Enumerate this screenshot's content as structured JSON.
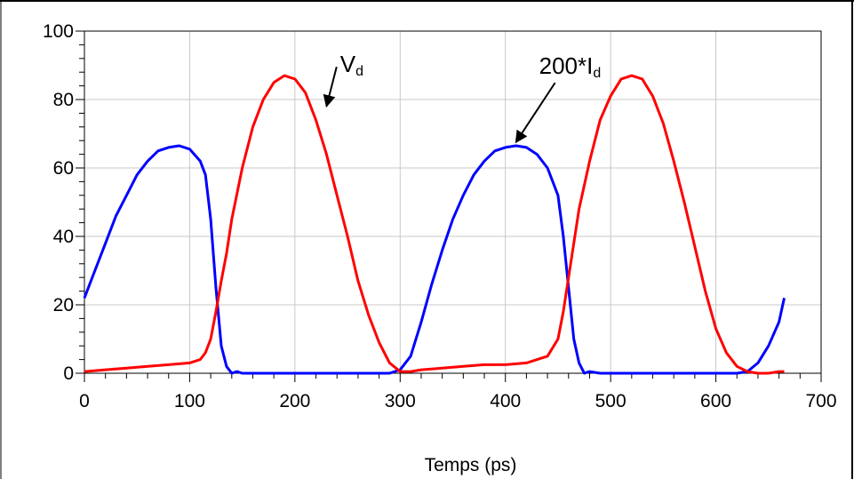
{
  "chart_data": {
    "type": "line",
    "title": "",
    "xlabel": "Temps (ps)",
    "ylabel": "",
    "xlim": [
      0,
      700
    ],
    "ylim": [
      0,
      100
    ],
    "grid": true,
    "x_ticks": [
      0,
      100,
      200,
      300,
      400,
      500,
      600,
      700
    ],
    "y_ticks": [
      0,
      20,
      40,
      60,
      80,
      100
    ],
    "x_tick_labels": [
      "0",
      "100",
      "200",
      "300",
      "400",
      "500",
      "600",
      "700"
    ],
    "y_tick_labels": [
      "0",
      "20",
      "40",
      "60",
      "80",
      "100"
    ],
    "series": [
      {
        "name": "",
        "color": "#0000ff",
        "x": [
          0,
          10,
          20,
          30,
          40,
          50,
          60,
          70,
          80,
          90,
          100,
          110,
          115,
          120,
          125,
          130,
          135,
          140,
          145,
          150,
          200,
          250,
          290,
          300,
          310,
          320,
          330,
          340,
          350,
          360,
          370,
          380,
          390,
          400,
          410,
          420,
          430,
          440,
          450,
          455,
          460,
          465,
          470,
          475,
          480,
          490,
          550,
          600,
          620,
          630,
          640,
          650,
          660,
          665
        ],
        "y": [
          22,
          30,
          38,
          46,
          52,
          58,
          62,
          65,
          66,
          66.5,
          65.5,
          62,
          58,
          45,
          25,
          8,
          2,
          0,
          0.5,
          0,
          0,
          0,
          0,
          1,
          5,
          15,
          26,
          36,
          45,
          52,
          58,
          62,
          65,
          66,
          66.5,
          66,
          64,
          60,
          52,
          40,
          25,
          10,
          3,
          0,
          0.5,
          0,
          0,
          0,
          0,
          0.5,
          3,
          8,
          15,
          22
        ]
      },
      {
        "name": "",
        "color": "#ff0000",
        "x": [
          0,
          20,
          40,
          60,
          80,
          100,
          110,
          115,
          120,
          125,
          130,
          135,
          140,
          150,
          160,
          170,
          180,
          190,
          200,
          210,
          220,
          230,
          240,
          250,
          260,
          270,
          280,
          290,
          300,
          310,
          320,
          340,
          360,
          380,
          400,
          420,
          440,
          450,
          455,
          460,
          465,
          470,
          480,
          490,
          500,
          510,
          520,
          530,
          540,
          550,
          560,
          570,
          580,
          590,
          600,
          610,
          620,
          630,
          640,
          650,
          660,
          665
        ],
        "y": [
          0.5,
          1,
          1.5,
          2,
          2.5,
          3,
          4,
          6,
          10,
          18,
          27,
          35,
          45,
          60,
          72,
          80,
          85,
          87,
          86,
          82,
          74,
          64,
          52,
          40,
          27,
          17,
          9,
          3,
          0.5,
          0.5,
          1,
          1.5,
          2,
          2.5,
          2.5,
          3,
          5,
          10,
          18,
          28,
          38,
          48,
          62,
          74,
          81,
          86,
          87,
          86,
          81,
          73,
          62,
          50,
          37,
          24,
          13,
          6,
          2,
          0.5,
          0,
          0,
          0.5,
          0.5
        ]
      }
    ],
    "annotations": [
      {
        "text": "Vd",
        "main": "V",
        "sub": "d",
        "x": 243,
        "y": 88,
        "arrow_to": [
          230,
          78
        ]
      },
      {
        "text": "200*Id",
        "main": "200*I",
        "sub": "d",
        "x": 432,
        "y": 87.5,
        "arrow_to": [
          410,
          67.5
        ]
      }
    ]
  }
}
